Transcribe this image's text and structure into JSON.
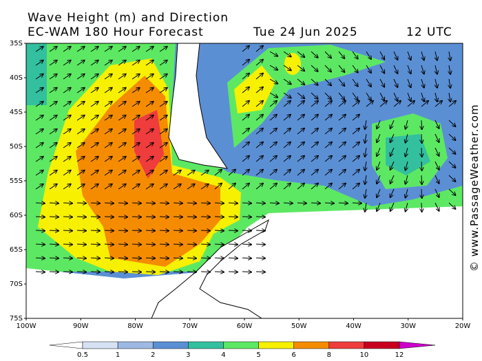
{
  "header": {
    "title": "Wave Height (m) and Direction",
    "model": "EC-WAM 180 Hour Forecast",
    "date": "Tue 24 Jun 2025",
    "time": "12 UTC"
  },
  "map": {
    "lat_labels": [
      "35S",
      "40S",
      "45S",
      "50S",
      "55S",
      "60S",
      "65S",
      "70S",
      "75S"
    ],
    "lon_labels": [
      "100W",
      "90W",
      "80W",
      "70W",
      "60W",
      "50W",
      "40W",
      "30W",
      "20W"
    ]
  },
  "legend": {
    "labels": [
      "0.5",
      "1",
      "2",
      "3",
      "4",
      "5",
      "6",
      "8",
      "10",
      "12"
    ],
    "colors": [
      "#ffffff",
      "#d6e2f4",
      "#9db9e3",
      "#5b8fd4",
      "#33c09e",
      "#5de864",
      "#f7f000",
      "#f58c00",
      "#ef3c3c",
      "#c8001e",
      "#cc00cc"
    ]
  },
  "watermark": "© www.PassageWeather.com"
}
